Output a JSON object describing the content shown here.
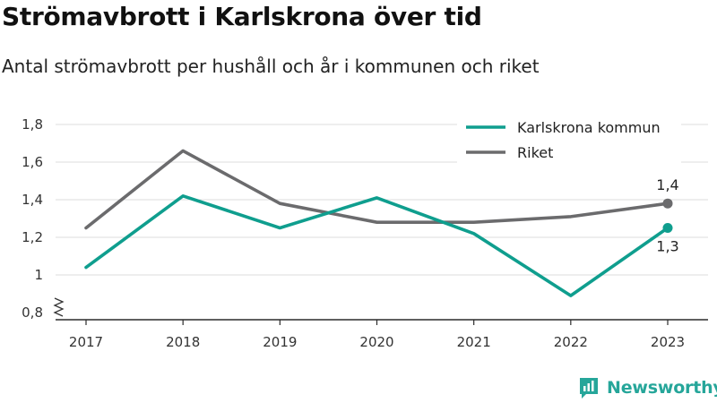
{
  "header": {
    "title": "Strömavbrott i Karlskrona över tid",
    "subtitle": "Antal strömavbrott per hushåll och år i kommunen och riket"
  },
  "brand": {
    "name": "Newsworthy",
    "icon": "newsworthy-logo-icon",
    "color": "#26a69a"
  },
  "chart_data": {
    "type": "line",
    "title": "Strömavbrott i Karlskrona över tid",
    "subtitle": "Antal strömavbrott per hushåll och år i kommunen och riket",
    "x": [
      "2017",
      "2018",
      "2019",
      "2020",
      "2021",
      "2022",
      "2023"
    ],
    "y_ticks": [
      "0,8",
      "1",
      "1,2",
      "1,4",
      "1,6",
      "1,8"
    ],
    "y_tick_values": [
      0.8,
      1.0,
      1.2,
      1.4,
      1.6,
      1.8
    ],
    "ylim": [
      0.8,
      1.8
    ],
    "y_axis_break": true,
    "grid": true,
    "legend_position": "top-right",
    "series": [
      {
        "name": "Karlskrona kommun",
        "color": "#0f9e8e",
        "values": [
          1.04,
          1.42,
          1.25,
          1.41,
          1.22,
          0.89,
          1.25
        ],
        "end_label": "1,3"
      },
      {
        "name": "Riket",
        "color": "#6b6b6d",
        "values": [
          1.25,
          1.66,
          1.38,
          1.28,
          1.28,
          1.31,
          1.38
        ],
        "end_label": "1,4"
      }
    ]
  }
}
